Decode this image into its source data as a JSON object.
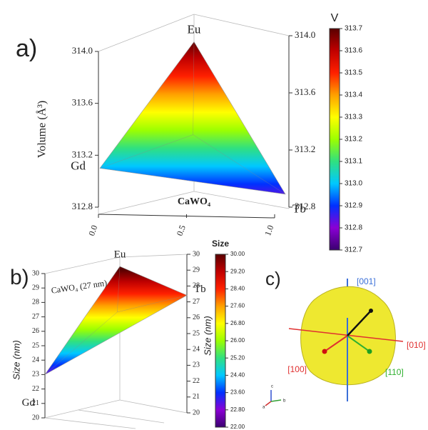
{
  "chart_data": [
    {
      "type": "ternary-surface",
      "panel_label": "a)",
      "z_label": "Volume (Å³)",
      "base_label": "CaWO₄",
      "vertices": [
        "Gd",
        "Eu",
        "Tb"
      ],
      "values": [
        313.1,
        313.7,
        312.9
      ],
      "zlim": [
        312.8,
        314.0
      ],
      "zticks": [
        312.8,
        313.2,
        313.6,
        {
          "value": 314,
          "label": "314.0"
        }
      ],
      "xlim": [
        0,
        1
      ],
      "xticks": [
        {
          "value": 0,
          "label": "0.0"
        },
        0.5,
        {
          "value": 1,
          "label": "1.0"
        }
      ],
      "colorbar_title": "V",
      "clim": [
        312.7,
        313.7
      ],
      "cticks": [
        312.7,
        312.8,
        312.9,
        {
          "value": 313,
          "label": "313.0"
        },
        313.1,
        313.2,
        313.3,
        313.4,
        313.5,
        313.6,
        313.7
      ],
      "colormap": [
        "#3a0070",
        "#8a00d4",
        "#0030ff",
        "#00c8ff",
        "#30e080",
        "#9cff00",
        "#ffff00",
        "#ffa000",
        "#ff2000",
        "#c00000",
        "#5a0000"
      ]
    },
    {
      "type": "ternary-surface",
      "panel_label": "b)",
      "z_label": "Size (nm)",
      "annotation": "CaWO₄ (27 nm)",
      "vertices": [
        "Gd",
        "Eu",
        "Tb"
      ],
      "values": [
        23,
        30,
        28
      ],
      "zlim": [
        20,
        30
      ],
      "zticks": [
        20,
        21,
        22,
        23,
        24,
        25,
        26,
        27,
        28,
        29,
        30
      ],
      "colorbar_title": "Size",
      "clim": [
        22,
        30
      ],
      "cticks": [
        {
          "value": 22,
          "label": "22.00"
        },
        {
          "value": 22.8,
          "label": "22.80"
        },
        {
          "value": 23.6,
          "label": "23.60"
        },
        {
          "value": 24.4,
          "label": "24.40"
        },
        {
          "value": 25.2,
          "label": "25.20"
        },
        {
          "value": 26,
          "label": "26.00"
        },
        {
          "value": 26.8,
          "label": "26.80"
        },
        {
          "value": 27.6,
          "label": "27.60"
        },
        {
          "value": 28.4,
          "label": "28.40"
        },
        {
          "value": 29.2,
          "label": "29.20"
        },
        {
          "value": 30,
          "label": "30.00"
        }
      ],
      "colormap": [
        "#3a0070",
        "#8a00d4",
        "#0030ff",
        "#00c8ff",
        "#30e080",
        "#9cff00",
        "#ffff00",
        "#ffa000",
        "#ff2000",
        "#c00000",
        "#5a0000"
      ]
    },
    {
      "type": "crystal-shape",
      "panel_label": "c)",
      "color": "#eee830",
      "directions": [
        "[001]",
        "[010]",
        "[100]",
        "[110]"
      ],
      "axis_labels": [
        "a",
        "b",
        "c"
      ]
    }
  ]
}
